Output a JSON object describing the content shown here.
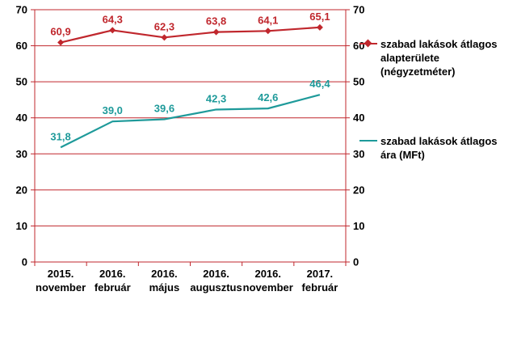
{
  "chart_data": {
    "type": "line",
    "categories": [
      [
        "2015.",
        "november"
      ],
      [
        "2016.",
        "február"
      ],
      [
        "2016.",
        "május"
      ],
      [
        "2016.",
        "augusztus"
      ],
      [
        "2016.",
        "november"
      ],
      [
        "2017.",
        "február"
      ]
    ],
    "series": [
      {
        "name": "szabad lakások átlagos alapterülete (négyzetméter)",
        "name_lines": [
          "szabad lakások átlagos",
          "alapterülete",
          "(négyzetméter)"
        ],
        "values": [
          60.9,
          64.3,
          62.3,
          63.8,
          64.1,
          65.1
        ],
        "labels": [
          "60,9",
          "64,3",
          "62,3",
          "63,8",
          "64,1",
          "65,1"
        ],
        "color": "#c0272d",
        "marker": "diamond"
      },
      {
        "name": "szabad lakások átlagos ára (MFt)",
        "name_lines": [
          "szabad lakások átlagos",
          "ára (MFt)"
        ],
        "values": [
          31.8,
          39.0,
          39.6,
          42.3,
          42.6,
          46.4
        ],
        "labels": [
          "31,8",
          "39,0",
          "39,6",
          "42,3",
          "42,6",
          "46,4"
        ],
        "color": "#1e9a9a",
        "marker": "none"
      }
    ],
    "ylim": [
      0,
      70
    ],
    "yticks": [
      0,
      10,
      20,
      30,
      40,
      50,
      60,
      70
    ],
    "secondary_ylim": [
      0,
      70
    ],
    "grid": true,
    "grid_color": "#c0272d",
    "axis_color": "#c0272d",
    "legend_position": "right"
  }
}
